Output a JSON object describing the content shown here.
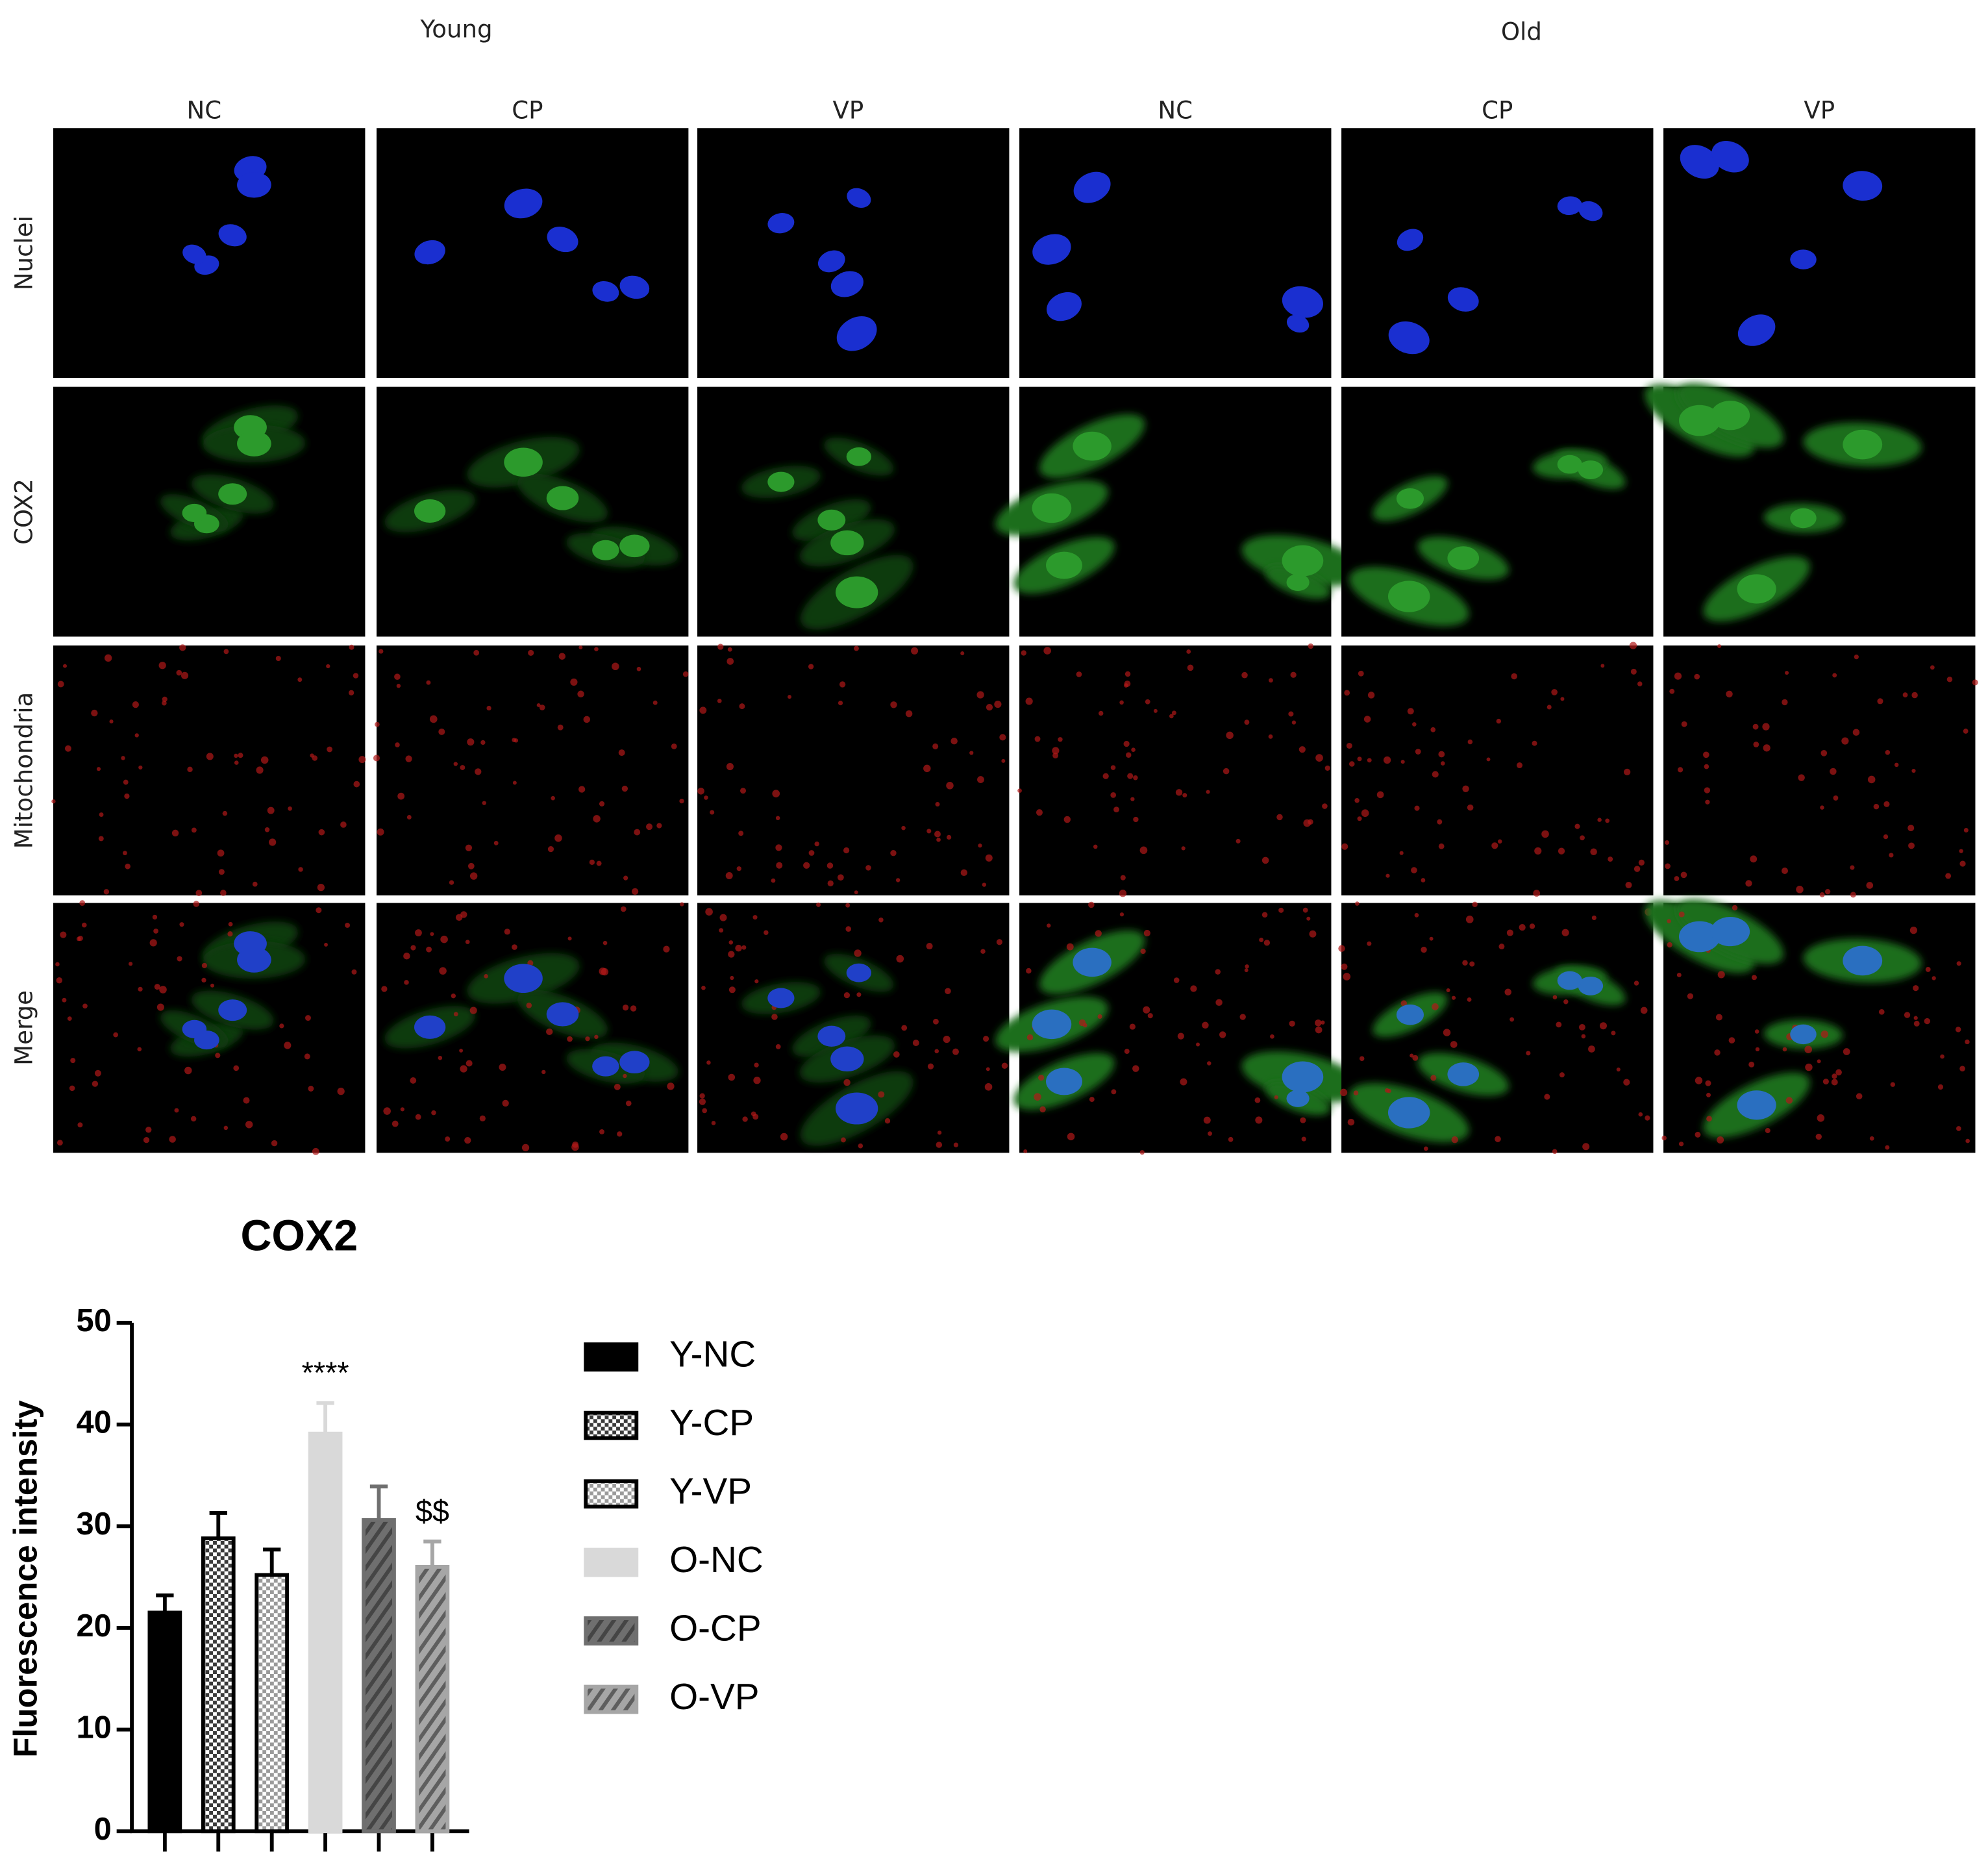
{
  "figure": {
    "groups": [
      "Young",
      "Old"
    ],
    "columns": [
      "NC",
      "CP",
      "VP",
      "NC",
      "CP",
      "VP"
    ],
    "rows": [
      "Nuclei",
      "COX2",
      "Mitochondria",
      "Merge"
    ]
  },
  "chart_data": {
    "type": "bar",
    "title": "COX2",
    "y_label": "Fluorescence intensity",
    "ylim": [
      0,
      50
    ],
    "yticks": [
      0,
      10,
      20,
      30,
      40,
      50
    ],
    "series": [
      {
        "name": "Y-NC",
        "color": "#000000",
        "edgecolor": "#000000",
        "pattern": "solid",
        "values": [
          21.5
        ],
        "errors": [
          1.7
        ]
      },
      {
        "name": "Y-CP",
        "color": "#3a3a3a",
        "edgecolor": "#000000",
        "pattern": "checker",
        "values": [
          28.8
        ],
        "errors": [
          2.5
        ]
      },
      {
        "name": "Y-VP",
        "color": "#9a9a9a",
        "edgecolor": "#000000",
        "pattern": "checker",
        "values": [
          25.2
        ],
        "errors": [
          2.5
        ]
      },
      {
        "name": "O-NC",
        "color": "#d9d9d9",
        "edgecolor": "#d9d9d9",
        "pattern": "solid",
        "values": [
          39.1
        ],
        "errors": [
          3.0
        ],
        "annotation": "****"
      },
      {
        "name": "O-CP",
        "color": "#6f6f6f",
        "edgecolor": "#6f6f6f",
        "pattern": "hatch",
        "values": [
          30.6
        ],
        "errors": [
          3.3
        ]
      },
      {
        "name": "O-VP",
        "color": "#a6a6a6",
        "edgecolor": "#a6a6a6",
        "pattern": "hatch",
        "values": [
          26.0
        ],
        "errors": [
          2.5
        ],
        "annotation": "$$"
      }
    ]
  }
}
